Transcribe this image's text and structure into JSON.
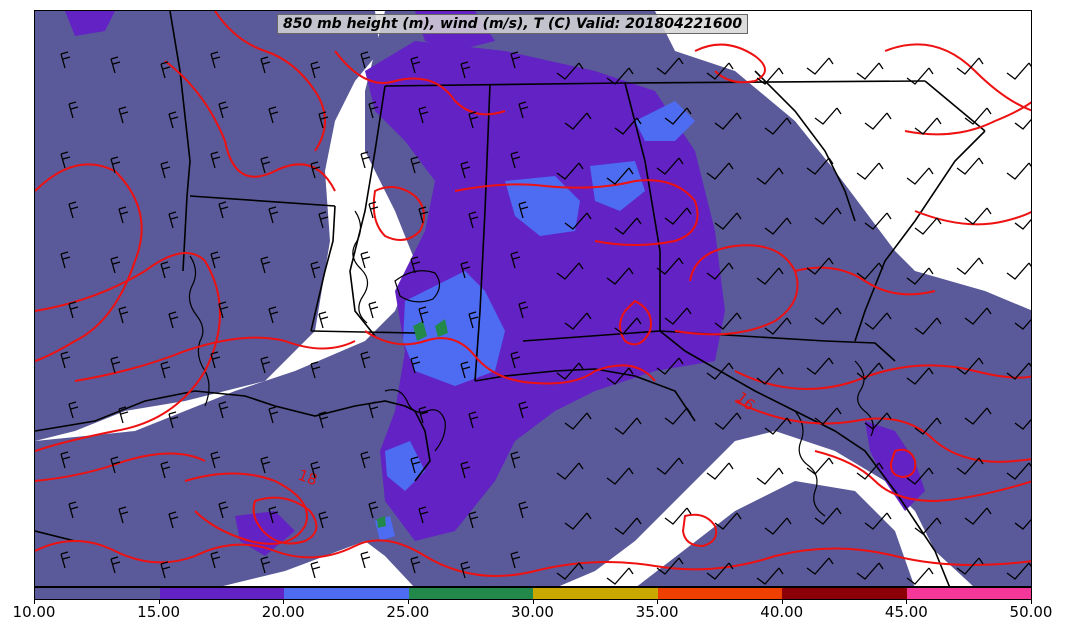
{
  "title": "850 mb height (m), wind (m/s), T (C) Valid: 201804221600",
  "colors": {
    "wind_10_15": "#5a5a9a",
    "wind_15_20": "#6222c4",
    "wind_20_25": "#4d6cf2",
    "wind_25_30": "#22894a",
    "wind_30_35": "#c9a800",
    "wind_35_40": "#f04000",
    "wind_40_45": "#8c0008",
    "wind_45_50": "#f5379a",
    "temperature_contour": "#ee1111",
    "boundaries": "#000000"
  },
  "colorbar": {
    "ticks": [
      "10.00",
      "15.00",
      "20.00",
      "25.00",
      "30.00",
      "35.00",
      "40.00",
      "45.00",
      "50.00"
    ],
    "segments": [
      "#5a5a9a",
      "#6222c4",
      "#4d6cf2",
      "#22894a",
      "#c9a800",
      "#f04000",
      "#8c0008",
      "#f5379a"
    ]
  },
  "contour_labels": [
    "18",
    "16"
  ],
  "icons": [
    "wind-barb-icon"
  ]
}
